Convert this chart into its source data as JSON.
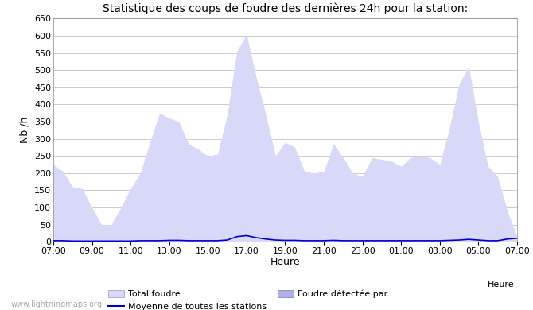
{
  "title": "Statistique des coups de foudre des dernières 24h pour la station:",
  "ylabel": "Nb /h",
  "xlabel": "Heure",
  "watermark": "www.lightningmaps.org",
  "ylim": [
    0,
    650
  ],
  "yticks": [
    0,
    50,
    100,
    150,
    200,
    250,
    300,
    350,
    400,
    450,
    500,
    550,
    600,
    650
  ],
  "x_labels": [
    "07:00",
    "09:00",
    "11:00",
    "13:00",
    "15:00",
    "17:00",
    "19:00",
    "21:00",
    "23:00",
    "01:00",
    "03:00",
    "05:00",
    "07:00"
  ],
  "fill_color_light": "#d8d8f8",
  "fill_color_dark": "#b0b0e8",
  "line_color": "#0000cc",
  "bg_color": "#ffffff",
  "plot_bg_color": "#ffffff",
  "grid_color": "#cccccc",
  "legend_labels": [
    "Total foudre",
    "Moyenne de toutes les stations",
    "Foudre détectée par"
  ],
  "total_foudre": [
    225,
    205,
    160,
    155,
    100,
    50,
    50,
    100,
    155,
    200,
    290,
    375,
    360,
    350,
    285,
    270,
    250,
    255,
    370,
    555,
    605,
    480,
    370,
    250,
    290,
    275,
    205,
    200,
    205,
    285,
    245,
    200,
    190,
    245,
    240,
    235,
    220,
    245,
    250,
    245,
    225,
    330,
    460,
    510,
    350,
    220,
    190,
    90,
    15
  ],
  "moyenne_stations": [
    3,
    3,
    2,
    2,
    2,
    2,
    2,
    2,
    2,
    3,
    3,
    3,
    4,
    4,
    3,
    3,
    3,
    3,
    5,
    15,
    18,
    12,
    8,
    5,
    4,
    4,
    3,
    3,
    3,
    4,
    3,
    3,
    3,
    3,
    3,
    3,
    3,
    3,
    3,
    3,
    3,
    4,
    5,
    7,
    5,
    3,
    3,
    8,
    10
  ],
  "n_points": 49
}
